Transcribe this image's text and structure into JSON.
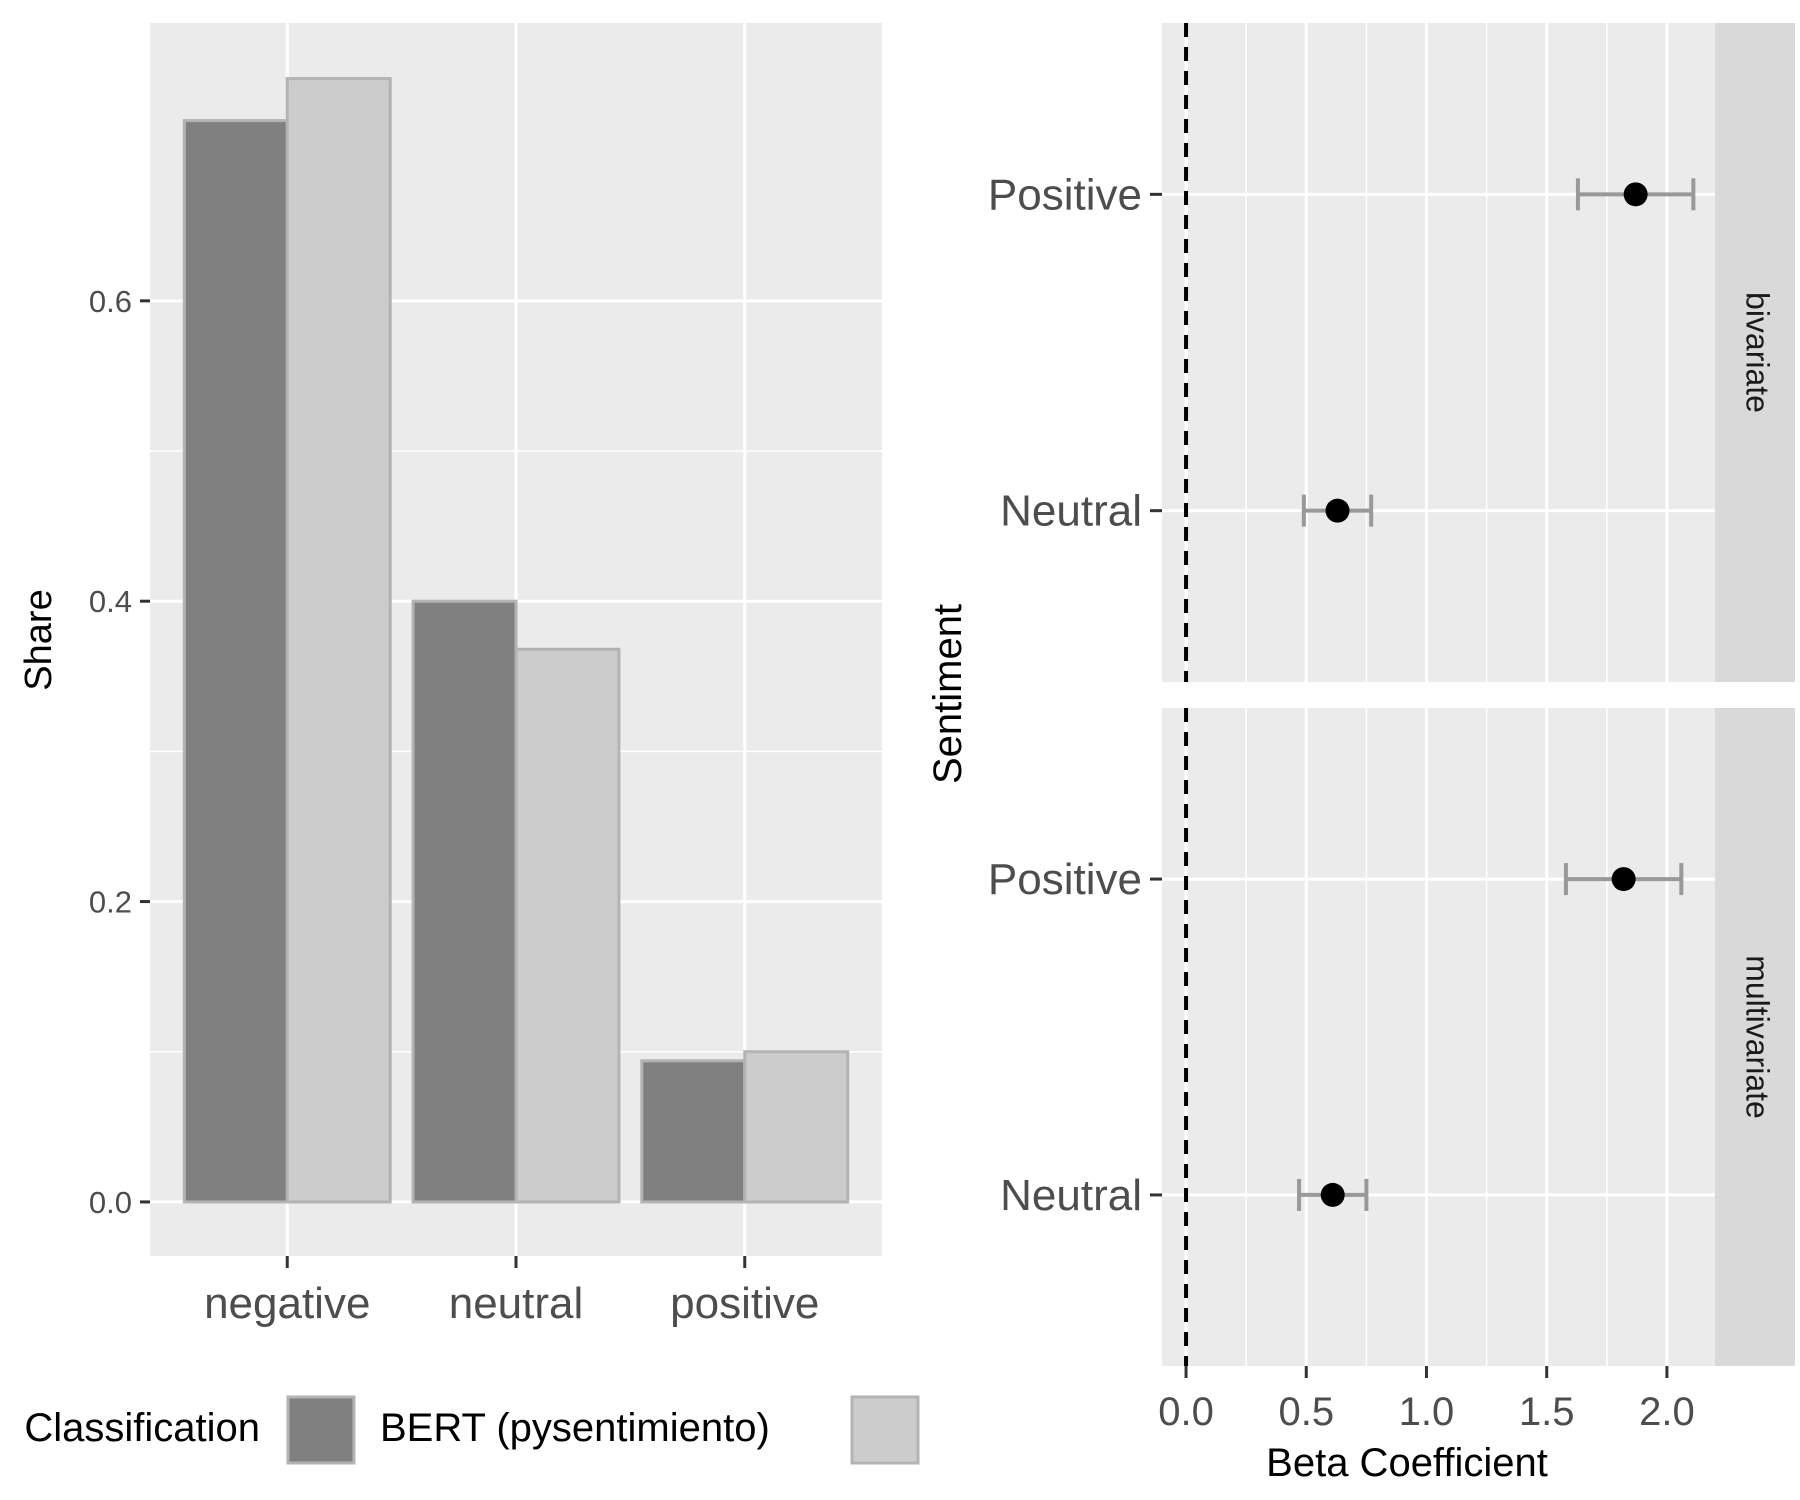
{
  "chart_data": [
    {
      "type": "bar",
      "ylabel": "Share",
      "xlabel": "",
      "categories": [
        "negative",
        "neutral",
        "positive"
      ],
      "y_ticks": [
        "0.0",
        "0.2",
        "0.4",
        "0.6"
      ],
      "ylim": [
        -0.036,
        0.785
      ],
      "series": [
        {
          "name": "BERT (pysentimiento)",
          "values": [
            0.72,
            0.4,
            0.094
          ],
          "fill": "#808080"
        },
        {
          "name": "",
          "values": [
            0.748,
            0.368,
            0.1
          ],
          "fill": "#cccccc"
        }
      ],
      "legend": {
        "title": "Classification",
        "position": "bottom"
      },
      "colors": {
        "panel": "#ebebeb",
        "grid": "#ffffff",
        "bar_border": "#b3b3b3"
      }
    },
    {
      "type": "scatter",
      "ylabel": "Sentiment",
      "xlabel": "Beta Coefficient",
      "x_ticks": [
        "0.0",
        "0.5",
        "1.0",
        "1.5",
        "2.0"
      ],
      "xlim": [
        -0.1,
        2.2
      ],
      "y_categories": [
        "Neutral",
        "Positive"
      ],
      "reference_line": {
        "x": 0,
        "style": "dashed"
      },
      "facets": [
        {
          "label": "bivariate",
          "points": [
            {
              "category": "Positive",
              "estimate": 1.87,
              "lower": 1.63,
              "upper": 2.11
            },
            {
              "category": "Neutral",
              "estimate": 0.63,
              "lower": 0.49,
              "upper": 0.77
            }
          ]
        },
        {
          "label": "multivariate",
          "points": [
            {
              "category": "Positive",
              "estimate": 1.82,
              "lower": 1.58,
              "upper": 2.06
            },
            {
              "category": "Neutral",
              "estimate": 0.61,
              "lower": 0.47,
              "upper": 0.75
            }
          ]
        }
      ],
      "colors": {
        "panel": "#ebebeb",
        "strip": "#d9d9d9",
        "point": "#000000",
        "errorbar": "#999999"
      }
    }
  ]
}
